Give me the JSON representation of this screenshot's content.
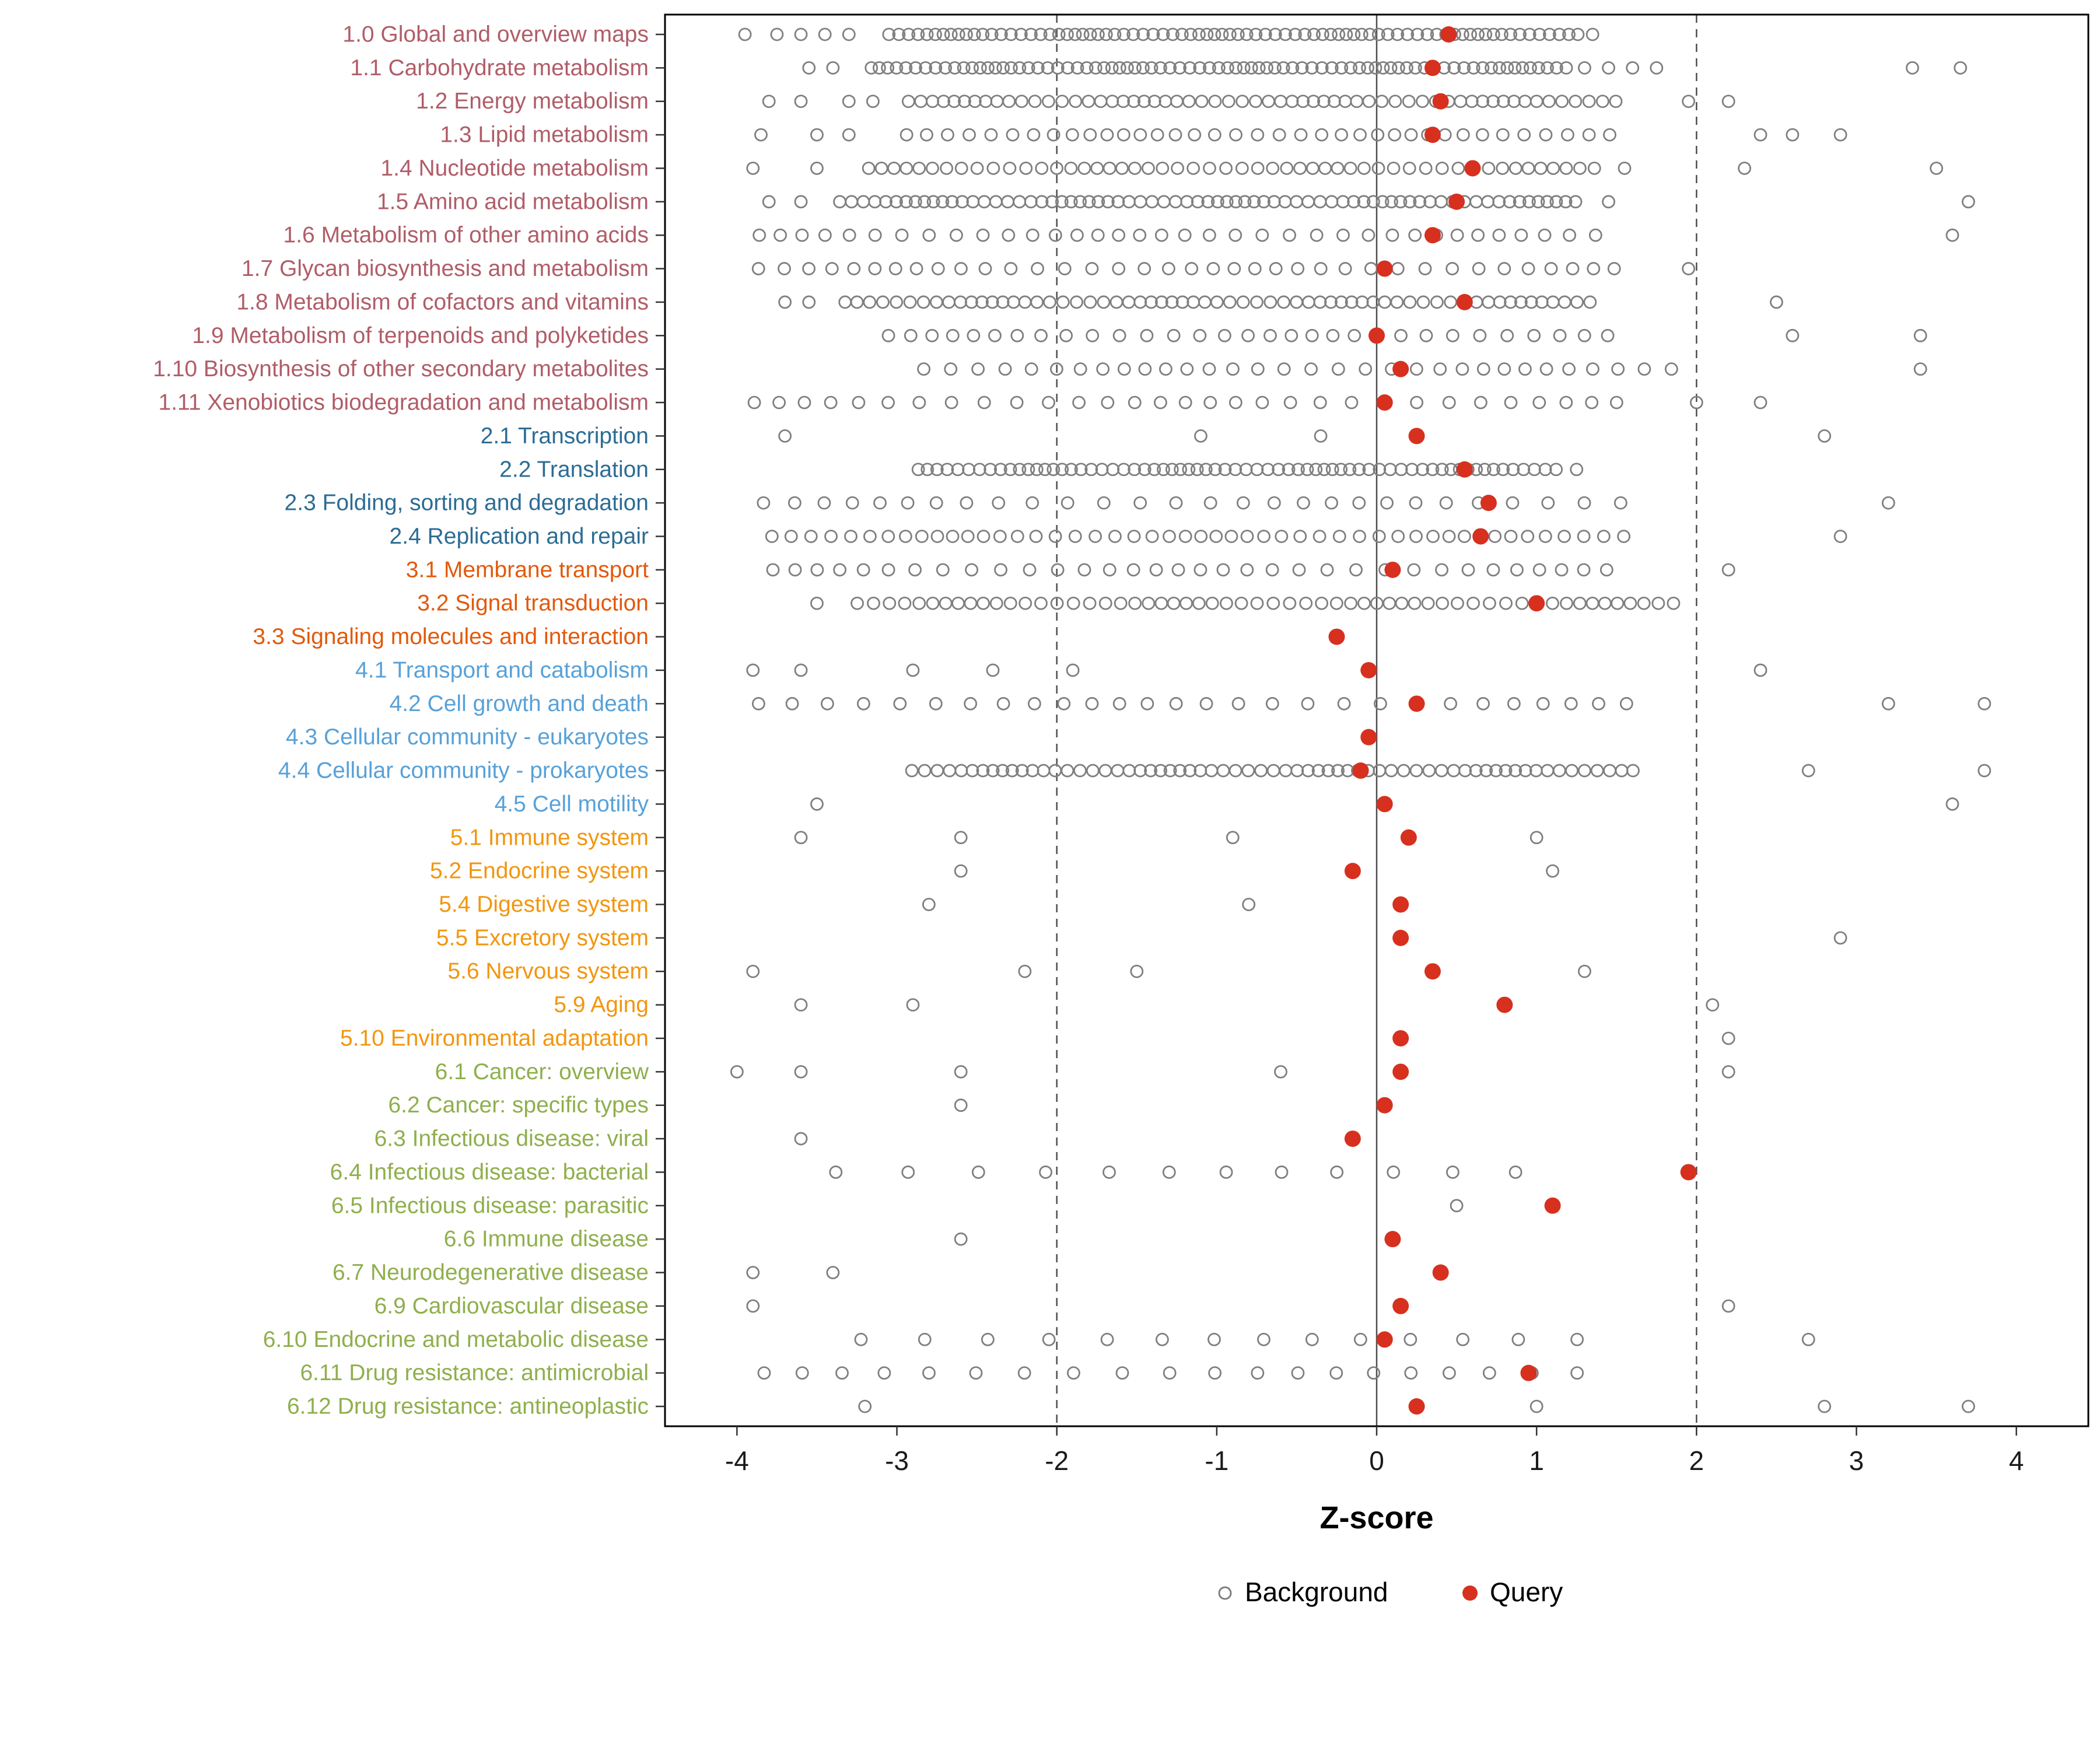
{
  "chart_data": {
    "type": "scatter",
    "title": "",
    "xlabel": "Z-score",
    "ylabel": "",
    "xlim": [
      -4.45,
      4.45
    ],
    "xticks": [
      -4,
      -3,
      -2,
      -1,
      0,
      1,
      2,
      3,
      4
    ],
    "reference_lines": {
      "solid": [
        0
      ],
      "dashed": [
        -2,
        2
      ]
    },
    "grid": false,
    "legend_position": "bottom",
    "colors": {
      "background_marker": "#7F7F7F",
      "query_marker": "#D7301F",
      "reference_line": "#4D4D4D",
      "panel_border": "#000000",
      "axis_text": "#1a1a1a",
      "group_metabolism": "#B05D68",
      "group_genetic_information_processing": "#2C6C94",
      "group_environmental_information_processing": "#E2590B",
      "group_cellular_processes": "#58A1D8",
      "group_organismal_systems": "#F2960F",
      "group_human_diseases": "#8FAF4C"
    },
    "legend": [
      {
        "name": "Background",
        "marker": "open-circle",
        "color": "#7F7F7F"
      },
      {
        "name": "Query",
        "marker": "filled-circle",
        "color": "#D7301F"
      }
    ],
    "series_note": "Each category row shows many open gray Background points and one red Query point; background_bands are [from,to,step] dense runs of background z-scores, background_points are individual background z-scores.",
    "categories": [
      {
        "label": "1.0 Global and overview maps",
        "group": "metabolism",
        "color": "#B05D68",
        "query": 0.45,
        "background_bands": [
          [
            -3.05,
            1.25,
            0.055
          ]
        ],
        "background_points": [
          -3.95,
          -3.75,
          -3.6,
          -3.45,
          -3.3,
          1.35
        ]
      },
      {
        "label": "1.1 Carbohydrate metabolism",
        "group": "metabolism",
        "color": "#B05D68",
        "query": 0.35,
        "background_bands": [
          [
            -3.15,
            1.2,
            0.055
          ]
        ],
        "background_points": [
          -3.55,
          -3.4,
          1.3,
          1.45,
          1.6,
          1.75,
          3.35,
          3.65
        ]
      },
      {
        "label": "1.2 Energy metabolism",
        "group": "metabolism",
        "color": "#B05D68",
        "query": 0.4,
        "background_bands": [
          [
            -2.95,
            1.5,
            0.075
          ]
        ],
        "background_points": [
          -3.8,
          -3.6,
          -3.3,
          -3.15,
          1.95,
          2.2
        ]
      },
      {
        "label": "1.3 Lipid metabolism",
        "group": "metabolism",
        "color": "#B05D68",
        "query": 0.35,
        "background_bands": [
          [
            -2.9,
            1.5,
            0.12
          ]
        ],
        "background_points": [
          -3.85,
          -3.5,
          -3.3,
          2.4,
          2.6,
          2.9
        ]
      },
      {
        "label": "1.4 Nucleotide metabolism",
        "group": "metabolism",
        "color": "#B05D68",
        "query": 0.6,
        "background_bands": [
          [
            -3.2,
            1.4,
            0.09
          ]
        ],
        "background_points": [
          -3.9,
          -3.5,
          1.55,
          2.3,
          3.5
        ]
      },
      {
        "label": "1.5 Amino acid metabolism",
        "group": "metabolism",
        "color": "#B05D68",
        "query": 0.5,
        "background_bands": [
          [
            -3.35,
            1.3,
            0.065
          ]
        ],
        "background_points": [
          -3.8,
          -3.6,
          1.45,
          3.7
        ]
      },
      {
        "label": "1.6 Metabolism of other amino acids",
        "group": "metabolism",
        "color": "#B05D68",
        "query": 0.35,
        "background_bands": [
          [
            -3.85,
            1.5,
            0.15
          ]
        ],
        "background_points": [
          3.6
        ]
      },
      {
        "label": "1.7 Glycan biosynthesis and metabolism",
        "group": "metabolism",
        "color": "#B05D68",
        "query": 0.05,
        "background_bands": [
          [
            -3.9,
            1.6,
            0.15
          ]
        ],
        "background_points": [
          1.95
        ]
      },
      {
        "label": "1.8 Metabolism of cofactors and vitamins",
        "group": "metabolism",
        "color": "#B05D68",
        "query": 0.55,
        "background_bands": [
          [
            -3.3,
            1.35,
            0.075
          ]
        ],
        "background_points": [
          -3.7,
          -3.55,
          2.5
        ]
      },
      {
        "label": "1.9 Metabolism of terpenoids and polyketides",
        "group": "metabolism",
        "color": "#B05D68",
        "query": 0.0,
        "background_bands": [
          [
            -3.1,
            1.5,
            0.15
          ]
        ],
        "background_points": [
          2.6,
          3.4
        ]
      },
      {
        "label": "1.10 Biosynthesis of other secondary metabolites",
        "group": "metabolism",
        "color": "#B05D68",
        "query": 0.15,
        "background_bands": [
          [
            -2.8,
            1.9,
            0.15
          ]
        ],
        "background_points": [
          3.4
        ]
      },
      {
        "label": "1.11 Xenobiotics biodegradation and metabolism",
        "group": "metabolism",
        "color": "#B05D68",
        "query": 0.05,
        "background_bands": [
          [
            -3.9,
            1.6,
            0.18
          ]
        ],
        "background_points": [
          2.0,
          2.4
        ]
      },
      {
        "label": "2.1 Transcription",
        "group": "genetic_information_processing",
        "color": "#2C6C94",
        "query": 0.25,
        "background_bands": [],
        "background_points": [
          -3.7,
          -1.1,
          -0.35,
          2.8
        ]
      },
      {
        "label": "2.2 Translation",
        "group": "genetic_information_processing",
        "color": "#2C6C94",
        "query": 0.55,
        "background_bands": [
          [
            -2.85,
            1.15,
            0.06
          ]
        ],
        "background_points": [
          1.25
        ]
      },
      {
        "label": "2.3 Folding, sorting and degradation",
        "group": "genetic_information_processing",
        "color": "#2C6C94",
        "query": 0.7,
        "background_bands": [
          [
            -3.9,
            1.5,
            0.2
          ]
        ],
        "background_points": [
          3.2
        ]
      },
      {
        "label": "2.4 Replication and repair",
        "group": "genetic_information_processing",
        "color": "#2C6C94",
        "query": 0.65,
        "background_bands": [
          [
            -3.75,
            1.6,
            0.11
          ]
        ],
        "background_points": [
          2.9
        ]
      },
      {
        "label": "3.1 Membrane transport",
        "group": "environmental_information_processing",
        "color": "#E2590B",
        "query": 0.1,
        "background_bands": [
          [
            -3.8,
            1.5,
            0.16
          ]
        ],
        "background_points": [
          2.2
        ]
      },
      {
        "label": "3.2 Signal transduction",
        "group": "environmental_information_processing",
        "color": "#E2590B",
        "query": 1.0,
        "background_bands": [
          [
            -3.25,
            1.9,
            0.09
          ]
        ],
        "background_points": [
          -3.5
        ]
      },
      {
        "label": "3.3 Signaling molecules and interaction",
        "group": "environmental_information_processing",
        "color": "#E2590B",
        "query": -0.25,
        "background_bands": [],
        "background_points": []
      },
      {
        "label": "4.1 Transport and catabolism",
        "group": "cellular_processes",
        "color": "#58A1D8",
        "query": -0.05,
        "background_bands": [],
        "background_points": [
          -3.9,
          -3.6,
          -2.9,
          -2.4,
          -1.9,
          2.4
        ]
      },
      {
        "label": "4.2 Cell growth and death",
        "group": "cellular_processes",
        "color": "#58A1D8",
        "query": 0.25,
        "background_bands": [
          [
            -3.8,
            1.7,
            0.2
          ]
        ],
        "background_points": [
          3.2,
          3.8
        ]
      },
      {
        "label": "4.3 Cellular community - eukaryotes",
        "group": "cellular_processes",
        "color": "#58A1D8",
        "query": -0.05,
        "background_bands": [],
        "background_points": []
      },
      {
        "label": "4.4 Cellular community - prokaryotes",
        "group": "cellular_processes",
        "color": "#58A1D8",
        "query": -0.1,
        "background_bands": [
          [
            -2.9,
            1.6,
            0.07
          ]
        ],
        "background_points": [
          2.7,
          3.8
        ]
      },
      {
        "label": "4.5 Cell motility",
        "group": "cellular_processes",
        "color": "#58A1D8",
        "query": 0.05,
        "background_bands": [],
        "background_points": [
          -3.5,
          3.6
        ]
      },
      {
        "label": "5.1 Immune system",
        "group": "organismal_systems",
        "color": "#F2960F",
        "query": 0.2,
        "background_bands": [],
        "background_points": [
          -3.6,
          -2.6,
          -0.9,
          1.0
        ]
      },
      {
        "label": "5.2 Endocrine system",
        "group": "organismal_systems",
        "color": "#F2960F",
        "query": -0.15,
        "background_bands": [],
        "background_points": [
          -2.6,
          1.1
        ]
      },
      {
        "label": "5.4 Digestive system",
        "group": "organismal_systems",
        "color": "#F2960F",
        "query": 0.15,
        "background_bands": [],
        "background_points": [
          -2.8,
          -0.8
        ]
      },
      {
        "label": "5.5 Excretory system",
        "group": "organismal_systems",
        "color": "#F2960F",
        "query": 0.15,
        "background_bands": [],
        "background_points": [
          2.9
        ]
      },
      {
        "label": "5.6 Nervous system",
        "group": "organismal_systems",
        "color": "#F2960F",
        "query": 0.35,
        "background_bands": [],
        "background_points": [
          -3.9,
          -2.2,
          -1.5,
          1.3
        ]
      },
      {
        "label": "5.9 Aging",
        "group": "organismal_systems",
        "color": "#F2960F",
        "query": 0.8,
        "background_bands": [],
        "background_points": [
          -3.6,
          -2.9,
          2.1
        ]
      },
      {
        "label": "5.10 Environmental adaptation",
        "group": "organismal_systems",
        "color": "#F2960F",
        "query": 0.15,
        "background_bands": [],
        "background_points": [
          2.2
        ]
      },
      {
        "label": "6.1 Cancer: overview",
        "group": "human_diseases",
        "color": "#8FAF4C",
        "query": 0.15,
        "background_bands": [],
        "background_points": [
          -4.0,
          -3.6,
          -2.6,
          -0.6,
          2.2
        ]
      },
      {
        "label": "6.2 Cancer: specific types",
        "group": "human_diseases",
        "color": "#8FAF4C",
        "query": 0.05,
        "background_bands": [],
        "background_points": [
          -2.6
        ]
      },
      {
        "label": "6.3 Infectious disease: viral",
        "group": "human_diseases",
        "color": "#8FAF4C",
        "query": -0.15,
        "background_bands": [],
        "background_points": [
          -3.6
        ]
      },
      {
        "label": "6.4 Infectious disease: bacterial",
        "group": "human_diseases",
        "color": "#8FAF4C",
        "query": 1.95,
        "background_bands": [
          [
            -3.4,
            1.0,
            0.4
          ]
        ],
        "background_points": []
      },
      {
        "label": "6.5 Infectious disease: parasitic",
        "group": "human_diseases",
        "color": "#8FAF4C",
        "query": 1.1,
        "background_bands": [],
        "background_points": [
          0.5
        ]
      },
      {
        "label": "6.6 Immune disease",
        "group": "human_diseases",
        "color": "#8FAF4C",
        "query": 0.1,
        "background_bands": [],
        "background_points": [
          -2.6
        ]
      },
      {
        "label": "6.7 Neurodegenerative disease",
        "group": "human_diseases",
        "color": "#8FAF4C",
        "query": 0.4,
        "background_bands": [],
        "background_points": [
          -3.9,
          -3.4
        ]
      },
      {
        "label": "6.9 Cardiovascular disease",
        "group": "human_diseases",
        "color": "#8FAF4C",
        "query": 0.15,
        "background_bands": [],
        "background_points": [
          -3.9,
          2.2
        ]
      },
      {
        "label": "6.10 Endocrine and metabolic disease",
        "group": "human_diseases",
        "color": "#8FAF4C",
        "query": 0.05,
        "background_bands": [
          [
            -3.2,
            1.4,
            0.35
          ]
        ],
        "background_points": [
          2.7
        ]
      },
      {
        "label": "6.11 Drug resistance: antimicrobial",
        "group": "human_diseases",
        "color": "#8FAF4C",
        "query": 0.95,
        "background_bands": [
          [
            -3.8,
            1.5,
            0.27
          ]
        ],
        "background_points": []
      },
      {
        "label": "6.12 Drug resistance: antineoplastic",
        "group": "human_diseases",
        "color": "#8FAF4C",
        "query": 0.25,
        "background_bands": [],
        "background_points": [
          -3.2,
          1.0,
          2.8,
          3.7
        ]
      }
    ]
  }
}
